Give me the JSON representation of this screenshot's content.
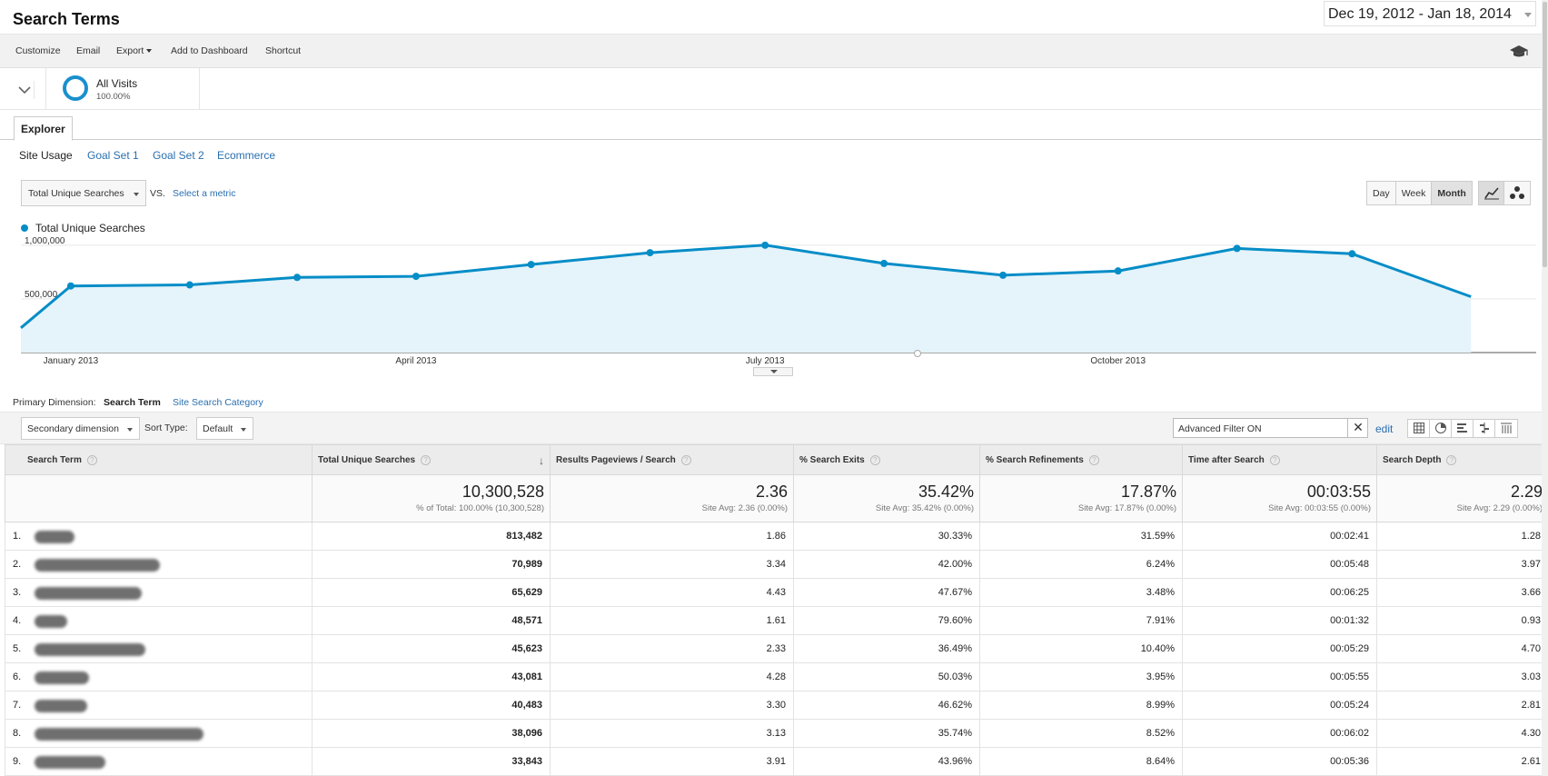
{
  "header": {
    "title": "Search Terms",
    "date_range": "Dec 19, 2012 - Jan 18, 2014"
  },
  "toolbar": {
    "customize": "Customize",
    "email": "Email",
    "export": "Export",
    "add_to_dashboard": "Add to Dashboard",
    "shortcut": "Shortcut"
  },
  "segment": {
    "name": "All Visits",
    "percent": "100.00%"
  },
  "tabs": {
    "explorer": "Explorer"
  },
  "subtabs": [
    "Site Usage",
    "Goal Set 1",
    "Goal Set 2",
    "Ecommerce"
  ],
  "metric": {
    "selected": "Total Unique Searches",
    "vs": "VS.",
    "select_metric": "Select a metric"
  },
  "granularity": [
    "Day",
    "Week",
    "Month"
  ],
  "granularity_selected": "Month",
  "colors": {
    "accent": "#058dc7",
    "area_fill": "#e5f3fa",
    "link": "#2a6fb0"
  },
  "chart_data": {
    "type": "line",
    "series": [
      {
        "name": "Total Unique Searches",
        "x": [
          "2012-12-19",
          "2013-01-01",
          "2013-02-01",
          "2013-03-01",
          "2013-04-01",
          "2013-05-01",
          "2013-06-01",
          "2013-07-01",
          "2013-08-01",
          "2013-09-01",
          "2013-10-01",
          "2013-11-01",
          "2013-12-01",
          "2014-01-01"
        ],
        "values": [
          230000,
          620000,
          630000,
          700000,
          710000,
          820000,
          930000,
          1000000,
          830000,
          720000,
          760000,
          970000,
          920000,
          520000
        ]
      }
    ],
    "x_ticks": [
      "January 2013",
      "April 2013",
      "July 2013",
      "October 2013"
    ],
    "y_ticks": [
      "1,000,000",
      "500,000"
    ],
    "y_tick_values": [
      1000000,
      500000
    ],
    "ylim": [
      0,
      1100000
    ],
    "grid": true,
    "legend": "top-left"
  },
  "primary_dimension": {
    "label": "Primary Dimension:",
    "options": [
      "Search Term",
      "Site Search Category"
    ],
    "selected": "Search Term"
  },
  "table_toolbar": {
    "secondary_dimension": "Secondary dimension",
    "sort_type_label": "Sort Type:",
    "sort_type": "Default",
    "filter_value": "Advanced Filter ON",
    "edit": "edit"
  },
  "table": {
    "columns": [
      "Search Term",
      "Total Unique Searches",
      "Results Pageviews / Search",
      "% Search Exits",
      "% Search Refinements",
      "Time after Search",
      "Search Depth"
    ],
    "totals": [
      {
        "value": "10,300,528",
        "sub": "% of Total: 100.00% (10,300,528)"
      },
      {
        "value": "2.36",
        "sub": "Site Avg: 2.36 (0.00%)"
      },
      {
        "value": "35.42%",
        "sub": "Site Avg: 35.42% (0.00%)"
      },
      {
        "value": "17.87%",
        "sub": "Site Avg: 17.87% (0.00%)"
      },
      {
        "value": "00:03:55",
        "sub": "Site Avg: 00:03:55 (0.00%)"
      },
      {
        "value": "2.29",
        "sub": "Site Avg: 2.29 (0.00%)"
      }
    ],
    "rows": [
      {
        "num": "1.",
        "values": [
          "813,482",
          "1.86",
          "30.33%",
          "31.59%",
          "00:02:41",
          "1.28"
        ]
      },
      {
        "num": "2.",
        "values": [
          "70,989",
          "3.34",
          "42.00%",
          "6.24%",
          "00:05:48",
          "3.97"
        ]
      },
      {
        "num": "3.",
        "values": [
          "65,629",
          "4.43",
          "47.67%",
          "3.48%",
          "00:06:25",
          "3.66"
        ]
      },
      {
        "num": "4.",
        "values": [
          "48,571",
          "1.61",
          "79.60%",
          "7.91%",
          "00:01:32",
          "0.93"
        ]
      },
      {
        "num": "5.",
        "values": [
          "45,623",
          "2.33",
          "36.49%",
          "10.40%",
          "00:05:29",
          "4.70"
        ]
      },
      {
        "num": "6.",
        "values": [
          "43,081",
          "4.28",
          "50.03%",
          "3.95%",
          "00:05:55",
          "3.03"
        ]
      },
      {
        "num": "7.",
        "values": [
          "40,483",
          "3.30",
          "46.62%",
          "8.99%",
          "00:05:24",
          "2.81"
        ]
      },
      {
        "num": "8.",
        "values": [
          "38,096",
          "3.13",
          "35.74%",
          "8.52%",
          "00:06:02",
          "4.30"
        ]
      },
      {
        "num": "9.",
        "values": [
          "33,843",
          "3.91",
          "43.96%",
          "8.64%",
          "00:05:36",
          "2.61"
        ]
      }
    ]
  }
}
